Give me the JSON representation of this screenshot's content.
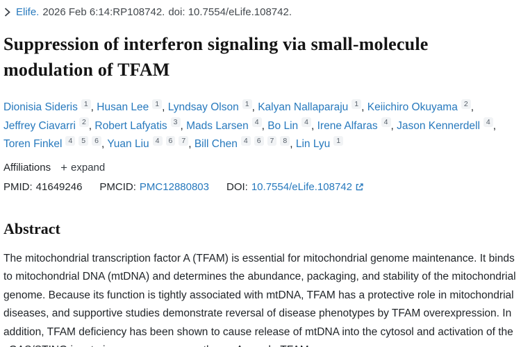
{
  "colors": {
    "link_blue": "#2779bd",
    "body_text": "#212529",
    "heading_text": "#141414",
    "badge_background": "#f1f3f5"
  },
  "journal_line": {
    "journal": "Elife.",
    "citation": "2026 Feb 6:14:RP108742.",
    "doi_text": "doi: 10.7554/eLife.108742."
  },
  "title": "Suppression of interferon signaling via small-molecule modulation of TFAM",
  "authors": [
    {
      "name": "Dionisia Sideris",
      "affiliations": [
        "1"
      ]
    },
    {
      "name": "Husan Lee",
      "affiliations": [
        "1"
      ]
    },
    {
      "name": "Lyndsay Olson",
      "affiliations": [
        "1"
      ]
    },
    {
      "name": "Kalyan Nallaparaju",
      "affiliations": [
        "1"
      ]
    },
    {
      "name": "Keiichiro Okuyama",
      "affiliations": [
        "2"
      ]
    },
    {
      "name": "Jeffrey Ciavarri",
      "affiliations": [
        "2"
      ]
    },
    {
      "name": "Robert Lafyatis",
      "affiliations": [
        "3"
      ]
    },
    {
      "name": "Mads Larsen",
      "affiliations": [
        "4"
      ]
    },
    {
      "name": "Bo Lin",
      "affiliations": [
        "4"
      ]
    },
    {
      "name": "Irene Alfaras",
      "affiliations": [
        "4"
      ]
    },
    {
      "name": "Jason Kennerdell",
      "affiliations": [
        "4"
      ]
    },
    {
      "name": "Toren Finkel",
      "affiliations": [
        "4",
        "5",
        "6"
      ]
    },
    {
      "name": "Yuan Liu",
      "affiliations": [
        "4",
        "6",
        "7"
      ]
    },
    {
      "name": "Bill Chen",
      "affiliations": [
        "4",
        "6",
        "7",
        "8"
      ]
    },
    {
      "name": "Lin Lyu",
      "affiliations": [
        "1"
      ]
    }
  ],
  "affiliations_row": {
    "label": "Affiliations",
    "plus": "+",
    "expand_label": "expand"
  },
  "identifiers": {
    "pmid_label": "PMID:",
    "pmid": "41649246",
    "pmcid_label": "PMCID:",
    "pmcid": "PMC12880803",
    "doi_label": "DOI:",
    "doi": "10.7554/eLife.108742"
  },
  "abstract": {
    "heading": "Abstract",
    "text": "The mitochondrial transcription factor A (TFAM) is essential for mitochondrial genome maintenance. It binds to mitochondrial DNA (mtDNA) and determines the abundance, packaging, and stability of the mitochondrial genome. Because its function is tightly associated with mtDNA, TFAM has a protective role in mitochondrial diseases, and supportive studies demonstrate reversal of disease phenotypes by TFAM overexpression. In addition, TFAM deficiency has been shown to cause release of mtDNA into the cytosol and activation of the cGAS/STING innate immune response pathway. As such, TFAM"
  }
}
